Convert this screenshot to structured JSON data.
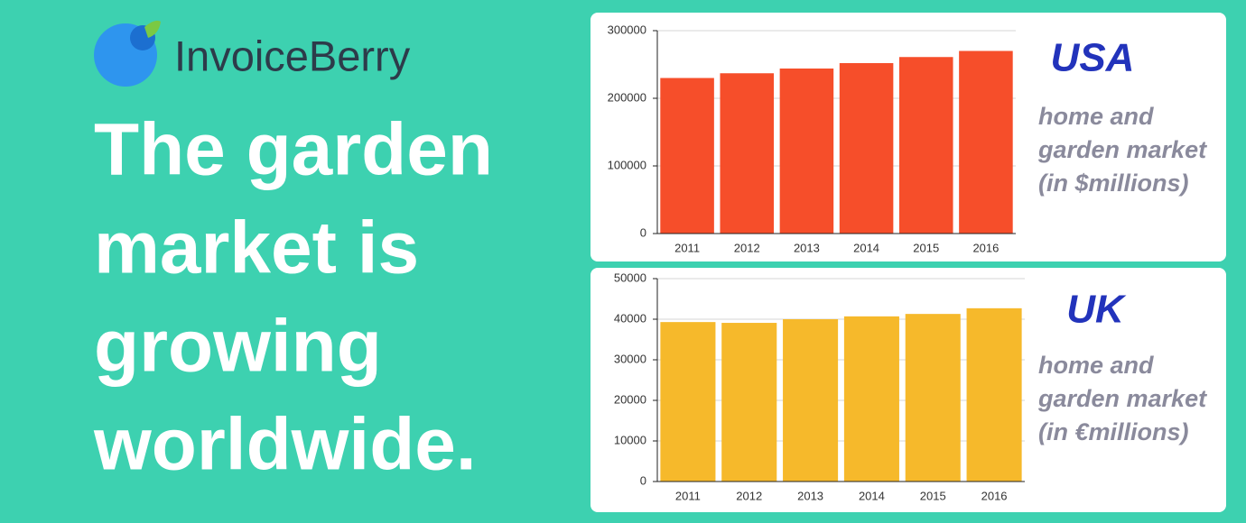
{
  "brand": "InvoiceBerry",
  "headline": [
    "The garden",
    "market is",
    "growing",
    "worldwide."
  ],
  "chart_data": [
    {
      "type": "bar",
      "title": "USA",
      "subtitle": [
        "home and",
        "garden market",
        "(in $millions)"
      ],
      "categories": [
        "2011",
        "2012",
        "2013",
        "2014",
        "2015",
        "2016"
      ],
      "values": [
        230000,
        237000,
        244000,
        252000,
        261000,
        270000
      ],
      "color": "#f64e2a",
      "ylim": [
        0,
        300000
      ],
      "yticks": [
        0,
        100000,
        200000,
        300000
      ],
      "grid": true
    },
    {
      "type": "bar",
      "title": "UK",
      "subtitle": [
        "home and",
        "garden market",
        "(in €millions)"
      ],
      "categories": [
        "2011",
        "2012",
        "2013",
        "2014",
        "2015",
        "2016"
      ],
      "values": [
        39300,
        39100,
        40000,
        40700,
        41300,
        42700
      ],
      "color": "#f6b92b",
      "ylim": [
        0,
        50000
      ],
      "yticks": [
        0,
        10000,
        20000,
        30000,
        40000,
        50000
      ],
      "grid": true
    }
  ]
}
